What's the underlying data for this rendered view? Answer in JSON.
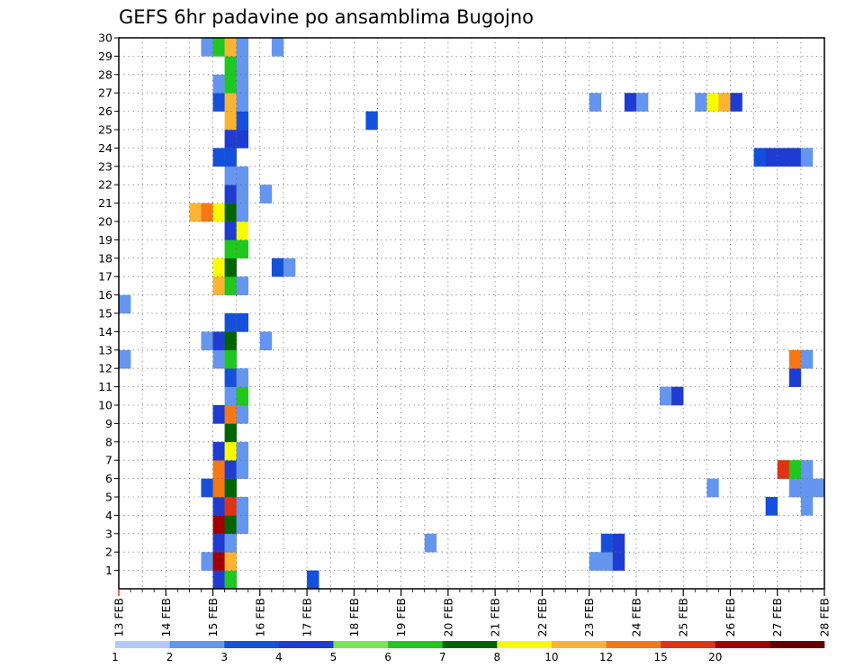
{
  "chart_data": {
    "type": "heatmap",
    "title": "GEFS 6hr padavine po ansamblima Bugojno",
    "xlabel": "",
    "ylabel": "",
    "x_tick_labels": [
      "13 FEB",
      "14 FEB",
      "15 FEB",
      "16 FEB",
      "17 FEB",
      "18 FEB",
      "19 FEB",
      "20 FEB",
      "21 FEB",
      "22 FEB",
      "23 FEB",
      "24 FEB",
      "25 FEB",
      "26 FEB",
      "27 FEB",
      "28 FEB"
    ],
    "y_tick_labels": [
      "1",
      "2",
      "3",
      "4",
      "5",
      "6",
      "7",
      "8",
      "9",
      "10",
      "11",
      "12",
      "13",
      "14",
      "15",
      "16",
      "17",
      "18",
      "19",
      "20",
      "21",
      "22",
      "23",
      "24",
      "25",
      "26",
      "27",
      "28",
      "29",
      "30"
    ],
    "x_range_days": [
      "13 FEB",
      "28 FEB"
    ],
    "time_step": "6hr",
    "y_range": [
      0,
      30
    ],
    "grid": true,
    "colorbar": {
      "labels": [
        "1",
        "2",
        "3",
        "4",
        "5",
        "6",
        "7",
        "8",
        "10",
        "12",
        "15",
        "20"
      ],
      "colors": [
        "#b4c8fa",
        "#6496f0",
        "#1450dc",
        "#1e3cd2",
        "#78e650",
        "#1ec81e",
        "#006400",
        "#fafa00",
        "#fab432",
        "#f57814",
        "#e13214",
        "#a00000",
        "#640000"
      ]
    },
    "cells": [
      [
        15.0,
        0,
        3
      ],
      [
        15.25,
        0,
        5
      ],
      [
        17.0,
        0,
        2
      ],
      [
        14.75,
        1,
        1
      ],
      [
        15.0,
        1,
        11
      ],
      [
        15.25,
        1,
        8
      ],
      [
        23.0,
        1,
        1
      ],
      [
        23.25,
        1,
        1
      ],
      [
        23.5,
        1,
        3
      ],
      [
        15.0,
        2,
        3
      ],
      [
        15.25,
        2,
        1
      ],
      [
        19.5,
        2,
        1
      ],
      [
        23.25,
        2,
        2
      ],
      [
        23.5,
        2,
        3
      ],
      [
        15.0,
        3,
        11
      ],
      [
        15.25,
        3,
        6
      ],
      [
        15.5,
        3,
        1
      ],
      [
        15.0,
        4,
        3
      ],
      [
        15.25,
        4,
        10
      ],
      [
        15.5,
        4,
        1
      ],
      [
        26.75,
        4,
        2
      ],
      [
        27.5,
        4,
        1
      ],
      [
        14.75,
        5,
        2
      ],
      [
        15.0,
        5,
        9
      ],
      [
        15.25,
        5,
        6
      ],
      [
        25.5,
        5,
        1
      ],
      [
        27.25,
        5,
        1
      ],
      [
        27.5,
        5,
        1
      ],
      [
        27.75,
        5,
        1
      ],
      [
        15.0,
        6,
        9
      ],
      [
        15.25,
        6,
        3
      ],
      [
        15.5,
        6,
        1
      ],
      [
        27.0,
        6,
        10
      ],
      [
        27.25,
        6,
        5
      ],
      [
        27.5,
        6,
        1
      ],
      [
        15.0,
        7,
        3
      ],
      [
        15.25,
        7,
        7
      ],
      [
        15.5,
        7,
        1
      ],
      [
        15.25,
        8,
        6
      ],
      [
        15.0,
        9,
        3
      ],
      [
        15.25,
        9,
        9
      ],
      [
        15.5,
        9,
        1
      ],
      [
        15.25,
        10,
        1
      ],
      [
        15.5,
        10,
        5
      ],
      [
        24.5,
        10,
        1
      ],
      [
        24.75,
        10,
        3
      ],
      [
        15.25,
        11,
        2
      ],
      [
        15.5,
        11,
        1
      ],
      [
        27.25,
        11,
        3
      ],
      [
        15.0,
        12,
        1
      ],
      [
        15.25,
        12,
        5
      ],
      [
        13.0,
        12,
        1
      ],
      [
        27.25,
        12,
        9
      ],
      [
        27.5,
        12,
        1
      ],
      [
        14.75,
        13,
        1
      ],
      [
        15.0,
        13,
        3
      ],
      [
        15.25,
        13,
        6
      ],
      [
        16.0,
        13,
        1
      ],
      [
        15.25,
        14,
        2
      ],
      [
        15.5,
        14,
        2
      ],
      [
        13.0,
        15,
        1
      ],
      [
        15.0,
        16,
        8
      ],
      [
        15.25,
        16,
        5
      ],
      [
        15.5,
        16,
        1
      ],
      [
        15.0,
        17,
        7
      ],
      [
        15.25,
        17,
        6
      ],
      [
        16.25,
        17,
        2
      ],
      [
        16.5,
        17,
        1
      ],
      [
        15.25,
        18,
        5
      ],
      [
        15.5,
        18,
        5
      ],
      [
        15.25,
        19,
        3
      ],
      [
        15.5,
        19,
        7
      ],
      [
        14.5,
        20,
        8
      ],
      [
        14.75,
        20,
        9
      ],
      [
        15.0,
        20,
        7
      ],
      [
        15.25,
        20,
        6
      ],
      [
        15.5,
        20,
        1
      ],
      [
        15.25,
        21,
        3
      ],
      [
        15.5,
        21,
        1
      ],
      [
        16.0,
        21,
        1
      ],
      [
        15.25,
        22,
        1
      ],
      [
        15.5,
        22,
        1
      ],
      [
        15.0,
        23,
        2
      ],
      [
        15.25,
        23,
        2
      ],
      [
        26.5,
        23,
        2
      ],
      [
        26.75,
        23,
        3
      ],
      [
        27.0,
        23,
        3
      ],
      [
        27.25,
        23,
        3
      ],
      [
        27.5,
        23,
        1
      ],
      [
        15.25,
        24,
        3
      ],
      [
        15.5,
        24,
        3
      ],
      [
        15.25,
        25,
        8
      ],
      [
        15.5,
        25,
        2
      ],
      [
        18.25,
        25,
        2
      ],
      [
        15.0,
        26,
        2
      ],
      [
        15.25,
        26,
        8
      ],
      [
        15.5,
        26,
        1
      ],
      [
        23.0,
        26,
        1
      ],
      [
        23.75,
        26,
        3
      ],
      [
        24.0,
        26,
        1
      ],
      [
        25.25,
        26,
        1
      ],
      [
        25.5,
        26,
        7
      ],
      [
        25.75,
        26,
        8
      ],
      [
        26.0,
        26,
        3
      ],
      [
        15.0,
        27,
        1
      ],
      [
        15.25,
        27,
        5
      ],
      [
        15.5,
        27,
        1
      ],
      [
        15.25,
        28,
        5
      ],
      [
        15.5,
        28,
        1
      ],
      [
        14.75,
        29,
        1
      ],
      [
        15.0,
        29,
        5
      ],
      [
        15.25,
        29,
        8
      ],
      [
        15.5,
        29,
        1
      ],
      [
        16.25,
        29,
        1
      ]
    ]
  }
}
